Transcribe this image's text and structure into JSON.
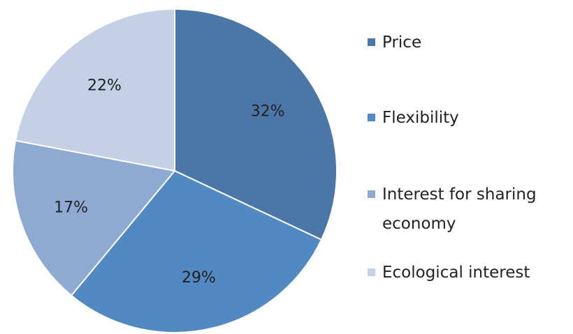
{
  "chart_data": {
    "type": "pie",
    "categories": [
      "Price",
      "Flexibility",
      "Interest for sharing economy",
      "Ecological interest"
    ],
    "values": [
      32,
      29,
      17,
      22
    ],
    "value_labels": [
      "32%",
      "29%",
      "17%",
      "22%"
    ],
    "colors": [
      "#4a76a8",
      "#5389c3",
      "#8eaad3",
      "#c3d0e5"
    ]
  }
}
